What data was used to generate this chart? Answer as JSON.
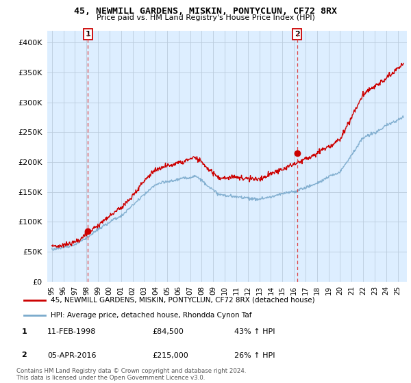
{
  "title": "45, NEWMILL GARDENS, MISKIN, PONTYCLUN, CF72 8RX",
  "subtitle": "Price paid vs. HM Land Registry's House Price Index (HPI)",
  "ylim": [
    0,
    420000
  ],
  "yticks": [
    0,
    50000,
    100000,
    150000,
    200000,
    250000,
    300000,
    350000,
    400000
  ],
  "ytick_labels": [
    "£0",
    "£50K",
    "£100K",
    "£150K",
    "£200K",
    "£250K",
    "£300K",
    "£350K",
    "£400K"
  ],
  "xtick_years": [
    1995,
    1996,
    1997,
    1998,
    1999,
    2000,
    2001,
    2002,
    2003,
    2004,
    2005,
    2006,
    2007,
    2008,
    2009,
    2010,
    2011,
    2012,
    2013,
    2014,
    2015,
    2016,
    2017,
    2018,
    2019,
    2020,
    2021,
    2022,
    2023,
    2024,
    2025
  ],
  "xlim_left": 1994.6,
  "xlim_right": 2025.8,
  "sale1_date_num": 1998.12,
  "sale1_price": 84500,
  "sale1_label": "1",
  "sale1_date_str": "11-FEB-1998",
  "sale1_price_str": "£84,500",
  "sale1_hpi_str": "43% ↑ HPI",
  "sale2_date_num": 2016.27,
  "sale2_price": 215000,
  "sale2_label": "2",
  "sale2_date_str": "05-APR-2016",
  "sale2_price_str": "£215,000",
  "sale2_hpi_str": "26% ↑ HPI",
  "red_color": "#cc0000",
  "blue_color": "#7aaacc",
  "chart_bg_color": "#ddeeff",
  "dashed_color": "#dd4444",
  "legend1": "45, NEWMILL GARDENS, MISKIN, PONTYCLUN, CF72 8RX (detached house)",
  "legend2": "HPI: Average price, detached house, Rhondda Cynon Taf",
  "footnote": "Contains HM Land Registry data © Crown copyright and database right 2024.\nThis data is licensed under the Open Government Licence v3.0.",
  "background_color": "#ffffff",
  "grid_color": "#bbccdd"
}
